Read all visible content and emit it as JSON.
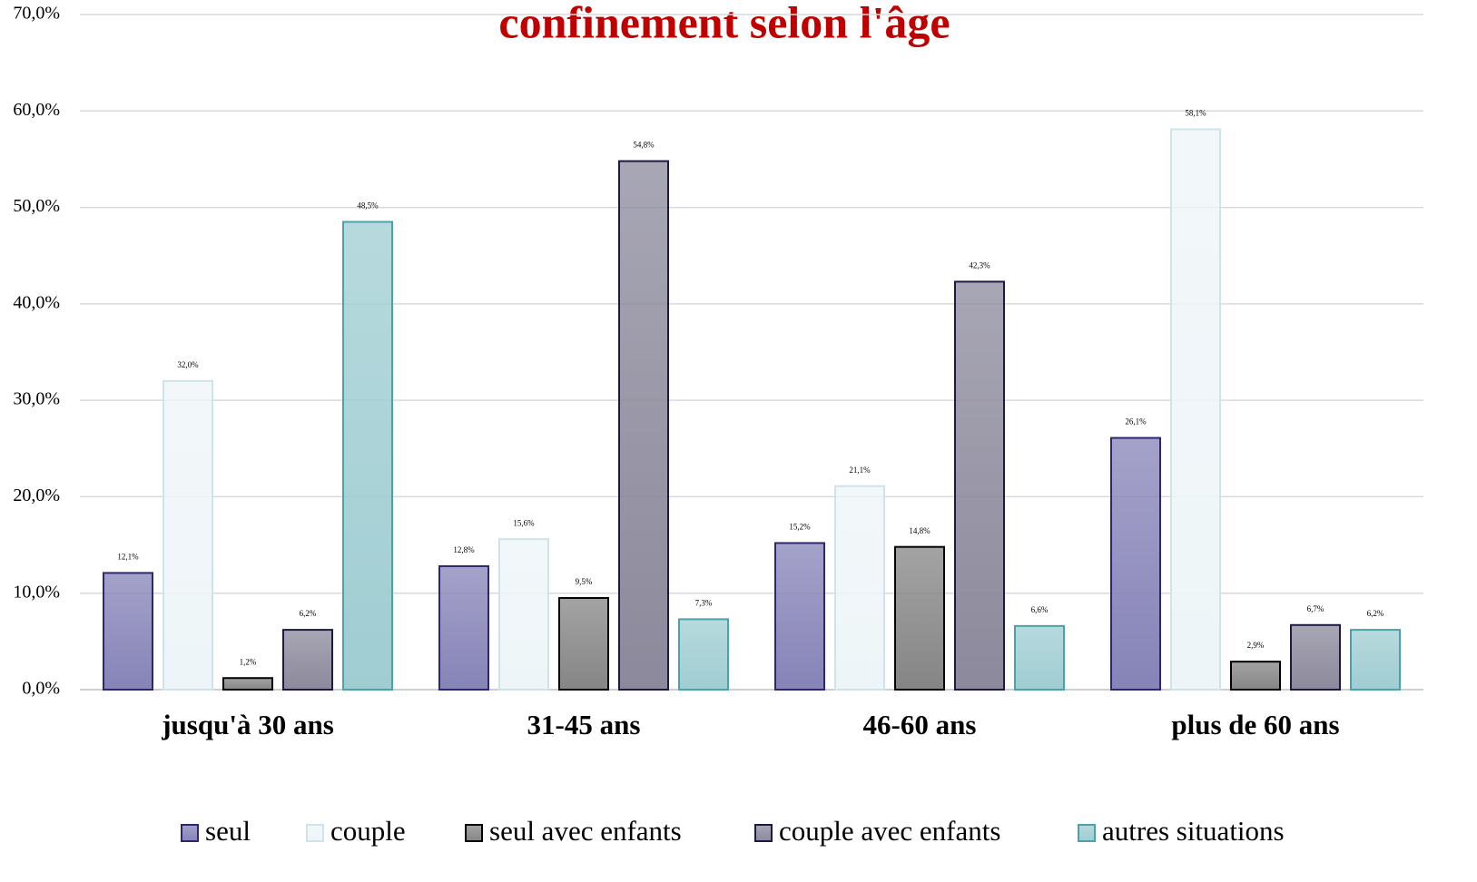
{
  "chart_data": {
    "type": "bar",
    "title": "confinement selon l'âge",
    "categories": [
      "jusqu'à 30 ans",
      "31-45 ans",
      "46-60 ans",
      "plus de 60 ans"
    ],
    "series": [
      {
        "name": "seul",
        "color": "#8683b8",
        "edgecolor": "#2b2870",
        "values": [
          12.1,
          12.8,
          15.2,
          26.1
        ],
        "value_labels": [
          "12,1%",
          "12,8%",
          "15,2%",
          "26,1%"
        ]
      },
      {
        "name": "couple",
        "color": "#eef5f8",
        "edgecolor": "#cfe4ea",
        "values": [
          32.0,
          15.6,
          21.1,
          58.1
        ],
        "value_labels": [
          "32,0%",
          "15,6%",
          "21,1%",
          "58,1%"
        ]
      },
      {
        "name": "seul avec enfants",
        "color": "#858585",
        "edgecolor": "#000000",
        "values": [
          1.2,
          9.5,
          14.8,
          2.9
        ],
        "value_labels": [
          "1,2%",
          "9,5%",
          "14,8%",
          "2,9%"
        ]
      },
      {
        "name": "couple avec enfants",
        "color": "#8b899b",
        "edgecolor": "#1c1a45",
        "values": [
          6.2,
          54.8,
          42.3,
          6.7
        ],
        "value_labels": [
          "6,2%",
          "54,8%",
          "42,3%",
          "6,7%"
        ]
      },
      {
        "name": "autres situations",
        "color": "#9fcdd2",
        "edgecolor": "#4aa2ab",
        "values": [
          48.5,
          7.3,
          6.6,
          6.2
        ],
        "value_labels": [
          "48,5%",
          "7,3%",
          "6,6%",
          "6,2%"
        ]
      }
    ],
    "ylim": [
      0,
      70
    ],
    "yticks": [
      {
        "value": 0,
        "label": "0,0%"
      },
      {
        "value": 10,
        "label": "10,0%"
      },
      {
        "value": 20,
        "label": "20,0%"
      },
      {
        "value": 30,
        "label": "30,0%"
      },
      {
        "value": 40,
        "label": "40,0%"
      },
      {
        "value": 50,
        "label": "50,0%"
      },
      {
        "value": 60,
        "label": "60,0%"
      },
      {
        "value": 70,
        "label": "70,0%"
      }
    ],
    "grid": true,
    "legend": "bottom"
  }
}
